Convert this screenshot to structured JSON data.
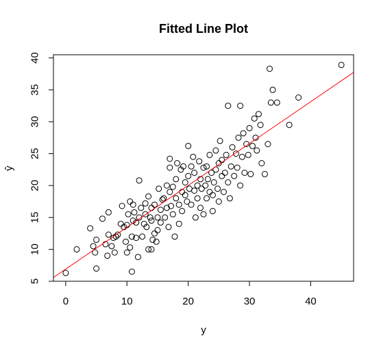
{
  "chart_data": {
    "type": "scatter",
    "title": "Fitted Line Plot",
    "xlabel": "y",
    "ylabel": "ŷ",
    "xlim": [
      -2,
      47
    ],
    "ylim": [
      5,
      40.5
    ],
    "xticks": [
      0,
      10,
      20,
      30,
      40
    ],
    "yticks": [
      5,
      10,
      15,
      20,
      25,
      30,
      35,
      40
    ],
    "grid": false,
    "colors": {
      "points": "#000000",
      "line": "#ff0000",
      "frame": "#000000"
    },
    "fitted_line": {
      "intercept": 6.9,
      "slope": 0.656
    },
    "points": [
      [
        0.0,
        6.3
      ],
      [
        1.8,
        10.0
      ],
      [
        4.0,
        13.3
      ],
      [
        4.5,
        10.5
      ],
      [
        4.8,
        9.5
      ],
      [
        5.0,
        11.5
      ],
      [
        5.0,
        7.0
      ],
      [
        6.0,
        14.8
      ],
      [
        6.5,
        10.8
      ],
      [
        6.8,
        9.0
      ],
      [
        7.0,
        15.8
      ],
      [
        7.0,
        12.3
      ],
      [
        7.5,
        10.5
      ],
      [
        7.8,
        11.8
      ],
      [
        8.0,
        9.5
      ],
      [
        8.2,
        12.0
      ],
      [
        8.5,
        12.3
      ],
      [
        9.0,
        14.0
      ],
      [
        9.2,
        16.8
      ],
      [
        9.5,
        13.5
      ],
      [
        9.8,
        11.2
      ],
      [
        10.0,
        13.8
      ],
      [
        10.0,
        9.5
      ],
      [
        10.2,
        15.5
      ],
      [
        10.5,
        17.5
      ],
      [
        10.5,
        10.3
      ],
      [
        10.8,
        12.0
      ],
      [
        10.8,
        6.5
      ],
      [
        11.0,
        14.5
      ],
      [
        11.0,
        17.0
      ],
      [
        11.2,
        15.8
      ],
      [
        11.5,
        14.2
      ],
      [
        11.5,
        11.8
      ],
      [
        11.8,
        8.8
      ],
      [
        12.0,
        20.8
      ],
      [
        12.0,
        15.0
      ],
      [
        12.3,
        16.5
      ],
      [
        12.5,
        12.0
      ],
      [
        12.8,
        14.0
      ],
      [
        13.0,
        15.5
      ],
      [
        13.0,
        17.2
      ],
      [
        13.2,
        13.5
      ],
      [
        13.5,
        18.3
      ],
      [
        13.5,
        10.0
      ],
      [
        13.8,
        15.0
      ],
      [
        14.0,
        14.5
      ],
      [
        14.0,
        16.5
      ],
      [
        14.0,
        10.0
      ],
      [
        14.2,
        11.5
      ],
      [
        14.5,
        12.5
      ],
      [
        14.5,
        17.0
      ],
      [
        14.8,
        11.2
      ],
      [
        15.0,
        15.0
      ],
      [
        15.0,
        13.0
      ],
      [
        15.2,
        19.5
      ],
      [
        15.5,
        16.2
      ],
      [
        15.5,
        14.2
      ],
      [
        15.8,
        17.8
      ],
      [
        16.0,
        18.0
      ],
      [
        16.2,
        15.0
      ],
      [
        16.5,
        20.0
      ],
      [
        16.5,
        16.5
      ],
      [
        16.8,
        13.5
      ],
      [
        17.0,
        19.0
      ],
      [
        17.0,
        22.8
      ],
      [
        17.0,
        24.2
      ],
      [
        17.2,
        16.8
      ],
      [
        17.5,
        19.8
      ],
      [
        17.5,
        15.5
      ],
      [
        17.8,
        12.0
      ],
      [
        18.0,
        18.0
      ],
      [
        18.0,
        21.0
      ],
      [
        18.2,
        23.5
      ],
      [
        18.5,
        17.0
      ],
      [
        18.5,
        14.0
      ],
      [
        18.8,
        22.5
      ],
      [
        19.0,
        19.0
      ],
      [
        19.0,
        16.0
      ],
      [
        19.2,
        23.0
      ],
      [
        19.5,
        18.5
      ],
      [
        19.5,
        20.5
      ],
      [
        19.8,
        17.5
      ],
      [
        20.0,
        21.5
      ],
      [
        20.0,
        26.2
      ],
      [
        20.2,
        19.5
      ],
      [
        20.5,
        23.0
      ],
      [
        20.5,
        17.0
      ],
      [
        20.8,
        24.5
      ],
      [
        21.0,
        19.2
      ],
      [
        21.0,
        22.0
      ],
      [
        21.2,
        15.0
      ],
      [
        21.5,
        20.0
      ],
      [
        21.5,
        18.0
      ],
      [
        21.8,
        23.8
      ],
      [
        22.0,
        21.0
      ],
      [
        22.0,
        16.5
      ],
      [
        22.2,
        19.5
      ],
      [
        22.5,
        15.5
      ],
      [
        22.5,
        22.8
      ],
      [
        22.8,
        20.0
      ],
      [
        23.0,
        18.0
      ],
      [
        23.0,
        23.0
      ],
      [
        23.2,
        21.0
      ],
      [
        23.5,
        19.0
      ],
      [
        23.5,
        24.8
      ],
      [
        23.8,
        22.0
      ],
      [
        24.0,
        18.5
      ],
      [
        24.0,
        16.0
      ],
      [
        24.2,
        20.5
      ],
      [
        24.5,
        25.5
      ],
      [
        24.5,
        22.5
      ],
      [
        24.8,
        19.5
      ],
      [
        25.0,
        23.5
      ],
      [
        25.0,
        17.5
      ],
      [
        25.2,
        27.0
      ],
      [
        25.5,
        21.5
      ],
      [
        25.5,
        24.0
      ],
      [
        25.8,
        19.0
      ],
      [
        26.0,
        22.0
      ],
      [
        26.2,
        24.8
      ],
      [
        26.5,
        20.5
      ],
      [
        26.5,
        32.5
      ],
      [
        26.8,
        18.0
      ],
      [
        27.0,
        23.0
      ],
      [
        27.2,
        26.0
      ],
      [
        27.5,
        21.5
      ],
      [
        27.8,
        25.0
      ],
      [
        28.0,
        22.8
      ],
      [
        28.2,
        27.5
      ],
      [
        28.5,
        32.5
      ],
      [
        28.5,
        20.0
      ],
      [
        28.8,
        24.5
      ],
      [
        29.0,
        28.2
      ],
      [
        29.2,
        22.0
      ],
      [
        29.5,
        26.5
      ],
      [
        29.8,
        24.8
      ],
      [
        30.0,
        29.0
      ],
      [
        30.2,
        21.8
      ],
      [
        30.5,
        26.2
      ],
      [
        30.8,
        30.5
      ],
      [
        31.0,
        27.5
      ],
      [
        31.2,
        25.5
      ],
      [
        31.5,
        31.2
      ],
      [
        31.8,
        29.5
      ],
      [
        32.0,
        23.5
      ],
      [
        32.5,
        21.8
      ],
      [
        33.0,
        26.5
      ],
      [
        33.3,
        38.3
      ],
      [
        33.5,
        33.0
      ],
      [
        33.8,
        35.0
      ],
      [
        34.5,
        33.0
      ],
      [
        36.5,
        29.5
      ],
      [
        38.0,
        33.8
      ],
      [
        45.0,
        38.9
      ]
    ]
  }
}
